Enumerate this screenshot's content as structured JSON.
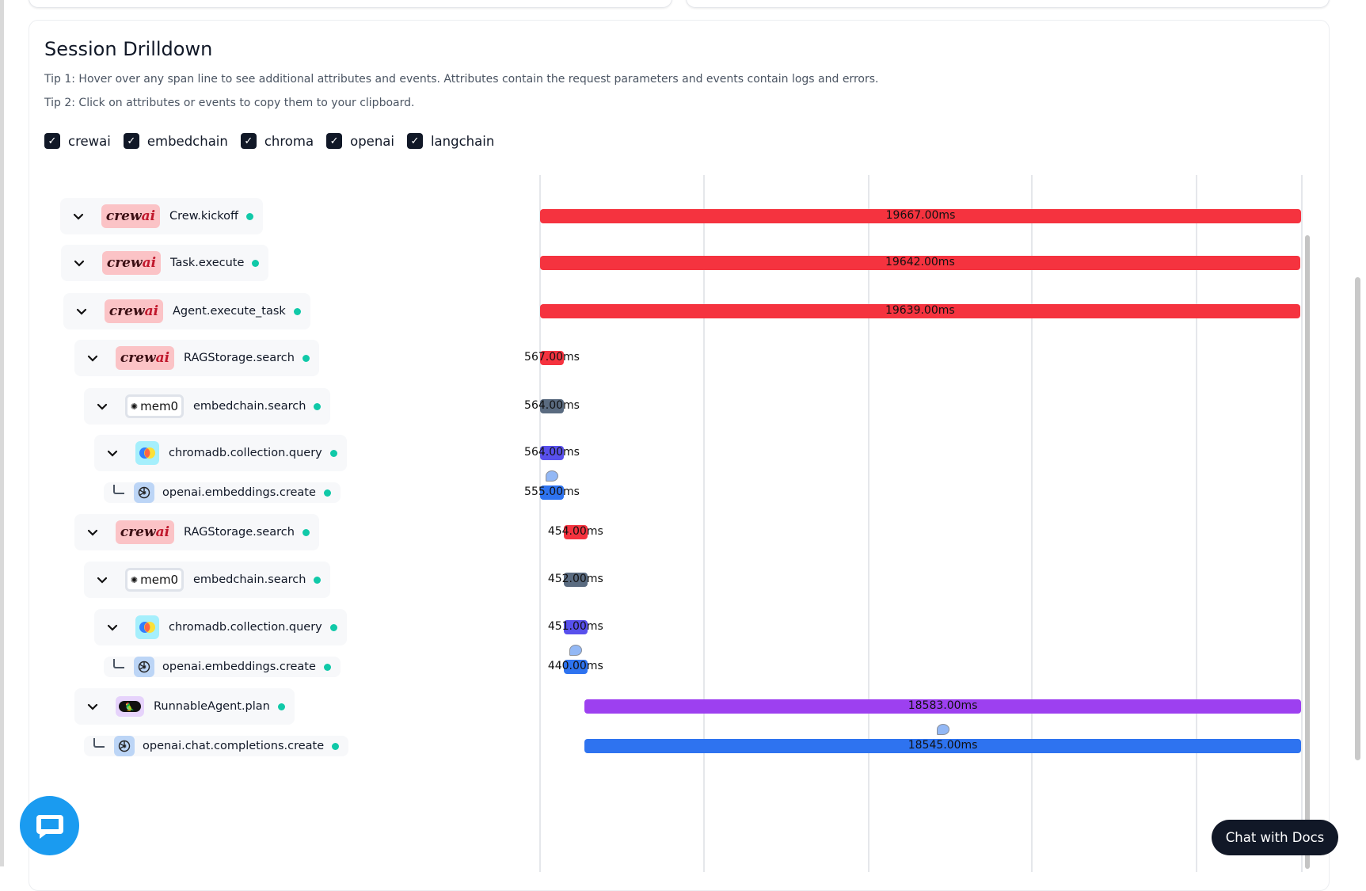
{
  "section": {
    "title": "Session Drilldown",
    "tip1": "Tip 1: Hover over any span line to see additional attributes and events. Attributes contain the request parameters and events contain logs and errors.",
    "tip2": "Tip 2: Click on attributes or events to copy them to your clipboard."
  },
  "filters": [
    {
      "label": "crewai",
      "checked": true
    },
    {
      "label": "embedchain",
      "checked": true
    },
    {
      "label": "chroma",
      "checked": true
    },
    {
      "label": "openai",
      "checked": true
    },
    {
      "label": "langchain",
      "checked": true
    }
  ],
  "provider_colors": {
    "crewai": "#f5333f",
    "mem0": "#5a6b80",
    "chroma": "#5850ec",
    "openai": "#2e73f0",
    "langchain": "#9d40f0"
  },
  "logos": {
    "crewai_text": "crew",
    "crewai_ai": "ai",
    "mem0": "mem0"
  },
  "spans": [
    {
      "name": "Crew.kickoff",
      "provider": "crewai",
      "duration": "19667.00ms",
      "duration_ms": 19667,
      "start_ms": 0,
      "expandable": true
    },
    {
      "name": "Task.execute",
      "provider": "crewai",
      "duration": "19642.00ms",
      "duration_ms": 19642,
      "start_ms": 0,
      "expandable": true
    },
    {
      "name": "Agent.execute_task",
      "provider": "crewai",
      "duration": "19639.00ms",
      "duration_ms": 19639,
      "start_ms": 0,
      "expandable": true
    },
    {
      "name": "RAGStorage.search",
      "provider": "crewai",
      "duration": "567.00ms",
      "duration_ms": 567,
      "start_ms": 0,
      "expandable": true
    },
    {
      "name": "embedchain.search",
      "provider": "mem0",
      "duration": "564.00ms",
      "duration_ms": 564,
      "start_ms": 0,
      "expandable": true
    },
    {
      "name": "chromadb.collection.query",
      "provider": "chroma",
      "duration": "564.00ms",
      "duration_ms": 564,
      "start_ms": 0,
      "expandable": true
    },
    {
      "name": "openai.embeddings.create",
      "provider": "openai",
      "duration": "555.00ms",
      "duration_ms": 555,
      "start_ms": 0,
      "expandable": false,
      "has_event": true
    },
    {
      "name": "RAGStorage.search",
      "provider": "crewai",
      "duration": "454.00ms",
      "duration_ms": 454,
      "start_ms": 610,
      "expandable": true
    },
    {
      "name": "embedchain.search",
      "provider": "mem0",
      "duration": "452.00ms",
      "duration_ms": 452,
      "start_ms": 610,
      "expandable": true
    },
    {
      "name": "chromadb.collection.query",
      "provider": "chroma",
      "duration": "451.00ms",
      "duration_ms": 451,
      "start_ms": 610,
      "expandable": true
    },
    {
      "name": "openai.embeddings.create",
      "provider": "openai",
      "duration": "440.00ms",
      "duration_ms": 440,
      "start_ms": 610,
      "expandable": false,
      "has_event": true
    },
    {
      "name": "RunnableAgent.plan",
      "provider": "langchain",
      "duration": "18583.00ms",
      "duration_ms": 18583,
      "start_ms": 1150,
      "expandable": true
    },
    {
      "name": "openai.chat.completions.create",
      "provider": "openai",
      "duration": "18545.00ms",
      "duration_ms": 18545,
      "start_ms": 1150,
      "expandable": false,
      "has_event": true
    }
  ],
  "chat_with_docs": "Chat with Docs"
}
